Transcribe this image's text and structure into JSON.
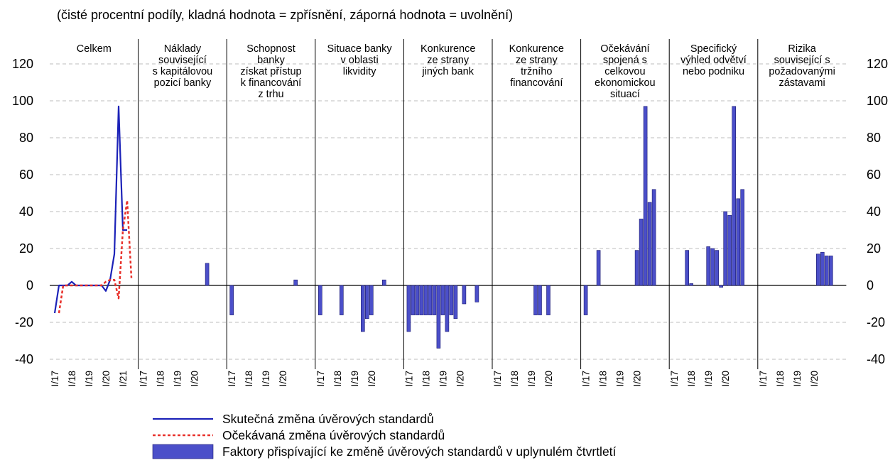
{
  "chart_data": {
    "type": "panels",
    "subtitle": "(čisté procentní podíly, kladná hodnota = zpřísnění, záporná hodnota = uvolnění)",
    "ylim": [
      -40,
      120
    ],
    "yticks": [
      -40,
      -20,
      0,
      20,
      40,
      60,
      80,
      100,
      120
    ],
    "grid": true,
    "bar_color": "#4b4fc9",
    "bar_legend": "Faktory přispívající ke změně úvěrových standardů v uplynulém čtvrtletí",
    "panels": [
      {
        "type": "line",
        "title": [
          "Celkem"
        ],
        "categories": [
          "I/17",
          null,
          null,
          null,
          "I/18",
          null,
          null,
          null,
          "I/19",
          null,
          null,
          null,
          "I/20",
          null,
          null,
          null,
          "I/21",
          null,
          null
        ],
        "series": [
          {
            "name": "Skutečná změna úvěrových standardů",
            "color": "#1c22b8",
            "dash": false,
            "values": [
              -15,
              0,
              0,
              0,
              2,
              0,
              0,
              0,
              0,
              0,
              0,
              0,
              -3,
              3,
              17,
              97,
              30,
              30,
              null
            ]
          },
          {
            "name": "Očekávaná změna úvěrových standardů",
            "color": "#e8302a",
            "dash": true,
            "values": [
              null,
              -15,
              0,
              0,
              0,
              0,
              0,
              0,
              0,
              0,
              0,
              0,
              2,
              3,
              3,
              -7,
              30,
              46,
              4
            ]
          }
        ]
      },
      {
        "type": "bar",
        "title": [
          "Náklady",
          "související",
          "s kapitálovou",
          "pozicí banky"
        ],
        "categories": [
          "I/17",
          null,
          null,
          null,
          "I/18",
          null,
          null,
          null,
          "I/19",
          null,
          null,
          null,
          "I/20",
          null,
          null,
          null,
          null
        ],
        "values": [
          null,
          null,
          null,
          null,
          null,
          null,
          null,
          null,
          null,
          null,
          null,
          null,
          null,
          null,
          null,
          12,
          null
        ]
      },
      {
        "type": "bar",
        "title": [
          "Schopnost",
          "banky",
          "získat přístup",
          "k financování",
          "z trhu"
        ],
        "categories": [
          "I/17",
          null,
          null,
          null,
          "I/18",
          null,
          null,
          null,
          "I/19",
          null,
          null,
          null,
          "I/20",
          null,
          null,
          null,
          null
        ],
        "values": [
          -16,
          null,
          null,
          null,
          null,
          null,
          null,
          null,
          null,
          null,
          null,
          null,
          null,
          null,
          null,
          3,
          null
        ]
      },
      {
        "type": "bar",
        "title": [
          "Situace banky",
          "v oblasti",
          "likvidity"
        ],
        "categories": [
          "I/17",
          null,
          null,
          null,
          "I/18",
          null,
          null,
          null,
          "I/19",
          null,
          null,
          null,
          "I/20",
          null,
          null,
          null,
          null
        ],
        "values": [
          -16,
          null,
          null,
          null,
          null,
          -16,
          null,
          null,
          null,
          null,
          -25,
          -18,
          -16,
          null,
          null,
          3,
          null
        ]
      },
      {
        "type": "bar",
        "title": [
          "Konkurence",
          "ze strany",
          "jiných bank"
        ],
        "categories": [
          "I/17",
          null,
          null,
          null,
          "I/18",
          null,
          null,
          null,
          "I/19",
          null,
          null,
          null,
          "I/20",
          null,
          null,
          null,
          null
        ],
        "values": [
          -25,
          -16,
          -16,
          -16,
          -16,
          -16,
          -16,
          -34,
          -16,
          -25,
          -16,
          -18,
          null,
          -10,
          null,
          null,
          -9
        ]
      },
      {
        "type": "bar",
        "title": [
          "Konkurence",
          "ze strany",
          "tržního",
          "financování"
        ],
        "categories": [
          "I/17",
          null,
          null,
          null,
          "I/18",
          null,
          null,
          null,
          "I/19",
          null,
          null,
          null,
          "I/20",
          null,
          null,
          null,
          null
        ],
        "values": [
          null,
          null,
          null,
          null,
          null,
          null,
          null,
          null,
          null,
          -16,
          -16,
          null,
          -16,
          null,
          null,
          null,
          null
        ]
      },
      {
        "type": "bar",
        "title": [
          "Očekávání",
          "spojená s",
          "celkovou",
          "ekonomickou",
          "situací"
        ],
        "categories": [
          "I/17",
          null,
          null,
          null,
          "I/18",
          null,
          null,
          null,
          "I/19",
          null,
          null,
          null,
          "I/20",
          null,
          null,
          null,
          null
        ],
        "values": [
          -16,
          null,
          null,
          19,
          null,
          null,
          null,
          null,
          null,
          null,
          null,
          null,
          19,
          36,
          97,
          45,
          52
        ]
      },
      {
        "type": "bar",
        "title": [
          "Specifický",
          "výhled odvětví",
          "nebo podniku"
        ],
        "categories": [
          "I/17",
          null,
          null,
          null,
          "I/18",
          null,
          null,
          null,
          "I/19",
          null,
          null,
          null,
          "I/20",
          null,
          null,
          null,
          null
        ],
        "values": [
          null,
          null,
          null,
          19,
          1,
          null,
          null,
          null,
          21,
          20,
          19,
          -1,
          40,
          38,
          97,
          47,
          52
        ]
      },
      {
        "type": "bar",
        "title": [
          "Rizika",
          "související s",
          "požadovanými",
          "zástavami"
        ],
        "categories": [
          "I/17",
          null,
          null,
          null,
          "I/18",
          null,
          null,
          null,
          "I/19",
          null,
          null,
          null,
          "I/20",
          null,
          null,
          null,
          null
        ],
        "values": [
          null,
          null,
          null,
          null,
          null,
          null,
          null,
          null,
          null,
          null,
          null,
          null,
          null,
          17,
          18,
          16,
          16
        ]
      }
    ]
  }
}
